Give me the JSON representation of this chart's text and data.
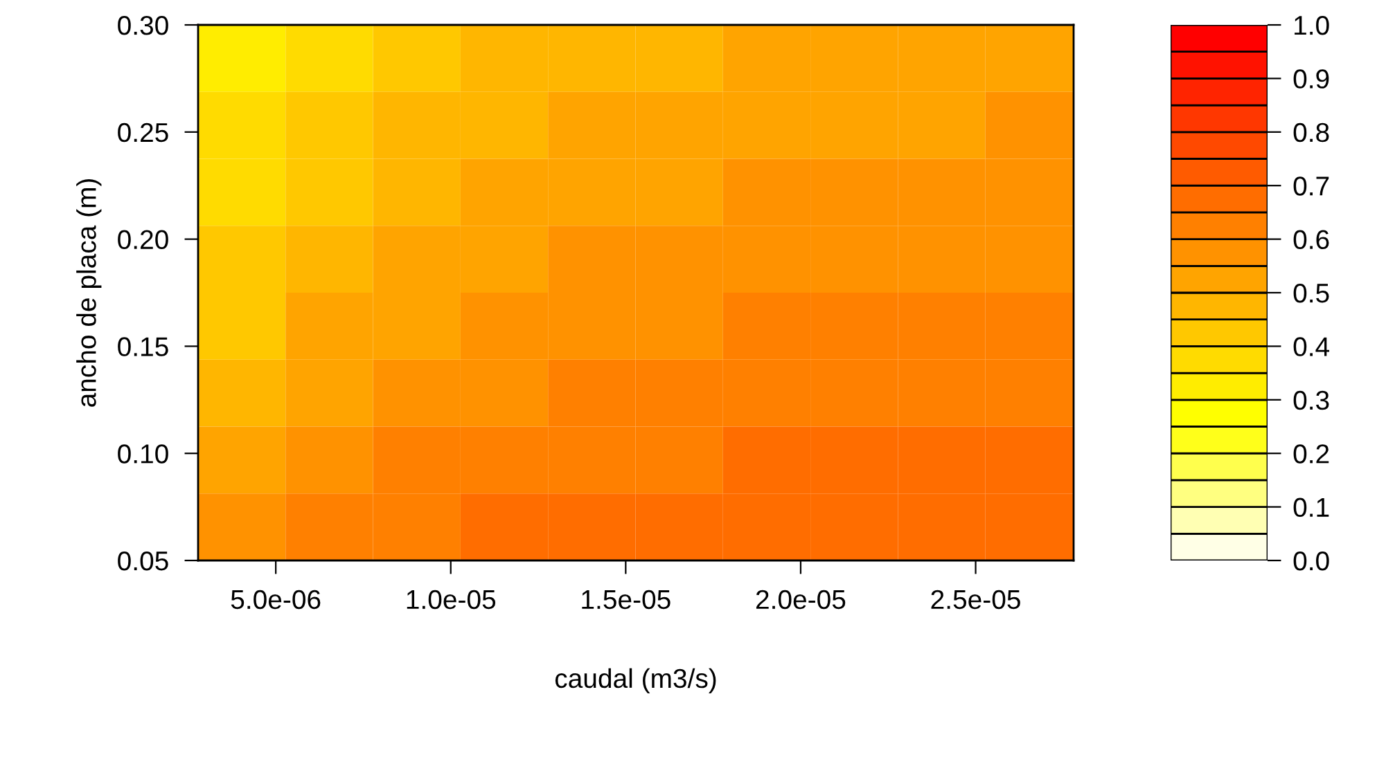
{
  "chart_data": {
    "type": "heatmap",
    "xlabel": "caudal (m3/s)",
    "ylabel": "ancho de placa (m)",
    "x": [
      4.03e-06,
      6.53e-06,
      9.03e-06,
      1.153e-05,
      1.403e-05,
      1.653e-05,
      1.903e-05,
      2.153e-05,
      2.403e-05,
      2.653e-05
    ],
    "y": [
      0.2844,
      0.2531,
      0.2219,
      0.1906,
      0.1594,
      0.1281,
      0.0969,
      0.0656
    ],
    "cells": [
      [
        0.325,
        0.375,
        0.425,
        0.475,
        0.475,
        0.475,
        0.525,
        0.525,
        0.525,
        0.525
      ],
      [
        0.375,
        0.425,
        0.475,
        0.475,
        0.525,
        0.525,
        0.525,
        0.525,
        0.525,
        0.575
      ],
      [
        0.375,
        0.425,
        0.475,
        0.525,
        0.525,
        0.525,
        0.575,
        0.575,
        0.575,
        0.575
      ],
      [
        0.425,
        0.475,
        0.525,
        0.525,
        0.575,
        0.575,
        0.575,
        0.575,
        0.575,
        0.575
      ],
      [
        0.425,
        0.525,
        0.525,
        0.575,
        0.575,
        0.575,
        0.625,
        0.625,
        0.625,
        0.625
      ],
      [
        0.475,
        0.525,
        0.575,
        0.575,
        0.625,
        0.625,
        0.625,
        0.625,
        0.625,
        0.625
      ],
      [
        0.525,
        0.575,
        0.625,
        0.625,
        0.625,
        0.625,
        0.675,
        0.675,
        0.675,
        0.675
      ],
      [
        0.575,
        0.625,
        0.625,
        0.675,
        0.675,
        0.675,
        0.675,
        0.675,
        0.675,
        0.675
      ]
    ],
    "xlim": [
      2.78e-06,
      2.78e-05
    ],
    "ylim": [
      0.05,
      0.3
    ],
    "xticks": [
      {
        "value": 5e-06,
        "label": "5.0e-06"
      },
      {
        "value": 1e-05,
        "label": "1.0e-05"
      },
      {
        "value": 1.5e-05,
        "label": "1.5e-05"
      },
      {
        "value": 2e-05,
        "label": "2.0e-05"
      },
      {
        "value": 2.5e-05,
        "label": "2.5e-05"
      }
    ],
    "yticks": [
      {
        "value": 0.05,
        "label": "0.05"
      },
      {
        "value": 0.1,
        "label": "0.10"
      },
      {
        "value": 0.15,
        "label": "0.15"
      },
      {
        "value": 0.2,
        "label": "0.20"
      },
      {
        "value": 0.25,
        "label": "0.25"
      },
      {
        "value": 0.3,
        "label": "0.30"
      }
    ],
    "clim": [
      0,
      1
    ],
    "cticks": [
      {
        "value": 0,
        "label": "0.0"
      },
      0.1,
      0.2,
      0.3,
      0.4,
      0.5,
      0.6,
      0.7,
      0.8,
      0.9,
      {
        "value": 1,
        "label": "1.0"
      }
    ],
    "colors": [
      "#ffffe6",
      "#ffffb3",
      "#ffff80",
      "#ffff4d",
      "#ffff1a",
      "#ffff00",
      "#ffed00",
      "#ffdb00",
      "#ffc800",
      "#ffb600",
      "#ffa400",
      "#ff9200",
      "#ff8000",
      "#ff6d00",
      "#ff5b00",
      "#ff4900",
      "#ff3700",
      "#ff2400",
      "#ff1200",
      "#ff0000"
    ]
  }
}
